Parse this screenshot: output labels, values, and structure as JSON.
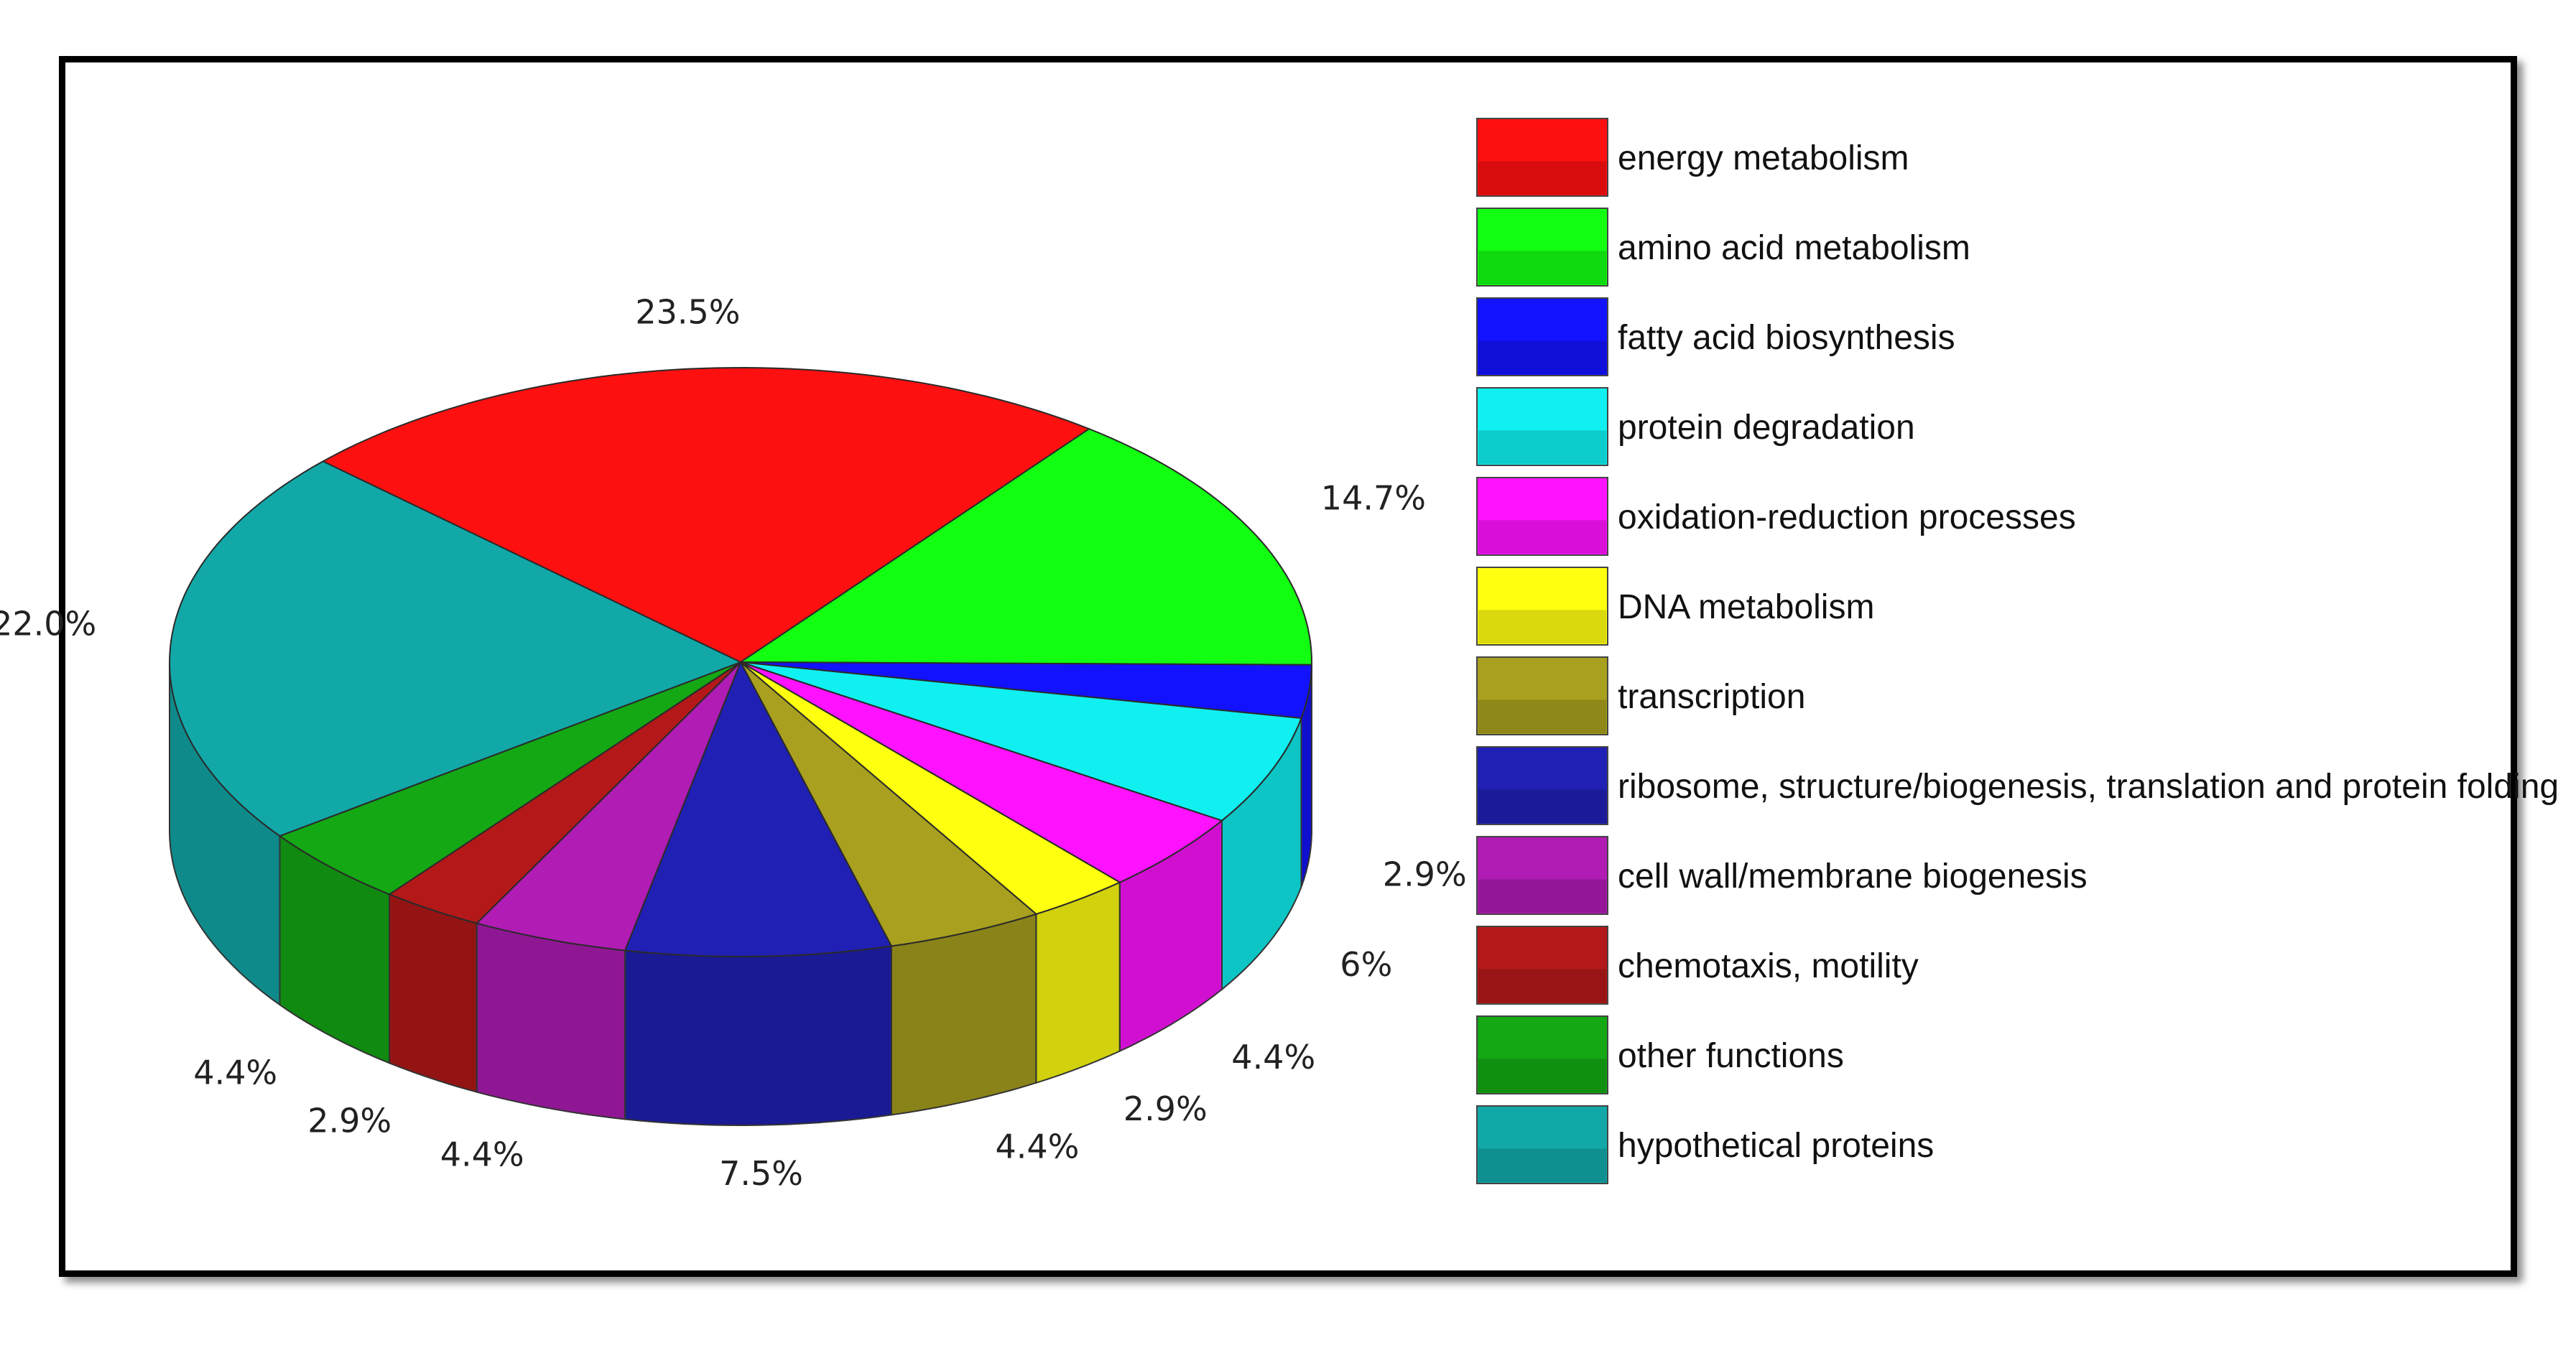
{
  "chart_data": {
    "type": "pie",
    "title": "",
    "three_d": true,
    "legend_position": "right",
    "slices": [
      {
        "label": "energy metabolism",
        "value": 23.5,
        "value_label": "23.5%",
        "color": "#ff1010"
      },
      {
        "label": "amino acid metabolism",
        "value": 14.7,
        "value_label": "14.7%",
        "color": "#12ff12"
      },
      {
        "label": "fatty acid biosynthesis",
        "value": 2.9,
        "value_label": "2.9%",
        "color": "#1212ff"
      },
      {
        "label": "protein degradation",
        "value": 6,
        "value_label": "6%",
        "color": "#10f0f0"
      },
      {
        "label": "oxidation-reduction processes",
        "value": 4.4,
        "value_label": "4.4%",
        "color": "#ff12ff"
      },
      {
        "label": "DNA metabolism",
        "value": 2.9,
        "value_label": "2.9%",
        "color": "#ffff10"
      },
      {
        "label": "transcription",
        "value": 4.4,
        "value_label": "4.4%",
        "color": "#a8a01e"
      },
      {
        "label": "ribosome, structure/biogenesis, translation and protein folding",
        "value": 7.5,
        "value_label": "7.5%",
        "color": "#2020b4"
      },
      {
        "label": "cell wall/membrane biogenesis",
        "value": 4.4,
        "value_label": "4.4%",
        "color": "#b01cb4"
      },
      {
        "label": "chemotaxis, motility",
        "value": 2.9,
        "value_label": "2.9%",
        "color": "#b41818"
      },
      {
        "label": "other functions",
        "value": 4.4,
        "value_label": "4.4%",
        "color": "#14a814"
      },
      {
        "label": "hypothetical proteins",
        "value": 22.0,
        "value_label": "22.0%",
        "color": "#12a8a8"
      }
    ]
  }
}
